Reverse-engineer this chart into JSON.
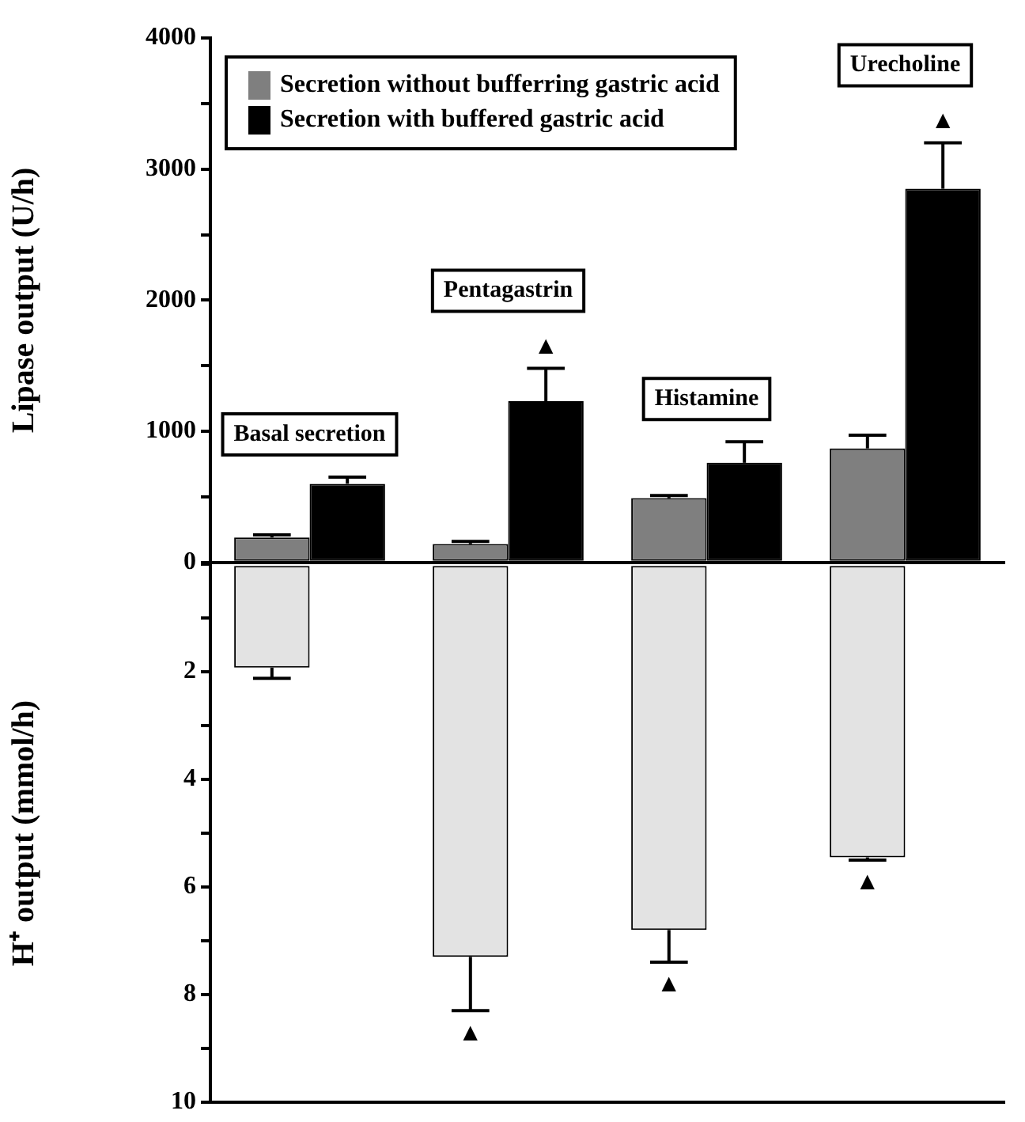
{
  "chart_data": [
    {
      "type": "bar",
      "ylabel": "Lipase output (U/h)",
      "categories": [
        "Basal secretion",
        "Pentagastrin",
        "Histamine",
        "Urecholine"
      ],
      "series": [
        {
          "name": "Secretion without bufferring gastric acid",
          "color": "#7f7f7f",
          "values": [
            190,
            140,
            490,
            870
          ],
          "errors": [
            [
              190,
              210
            ],
            [
              140,
              160
            ],
            [
              490,
              510
            ],
            [
              870,
              970
            ]
          ]
        },
        {
          "name": "Secretion with buffered gastric acid",
          "color": "#000000",
          "values": [
            600,
            1230,
            760,
            2850
          ],
          "errors": [
            [
              600,
              650
            ],
            [
              1230,
              1480
            ],
            [
              760,
              920
            ],
            [
              2850,
              3200
            ]
          ]
        }
      ],
      "ylim": [
        0,
        4000
      ],
      "yticks": [
        0,
        {
          "value": 500,
          "label": null
        },
        1000,
        {
          "value": 1500,
          "label": null
        },
        2000,
        {
          "value": 2500,
          "label": null
        },
        3000,
        {
          "value": 3500,
          "label": null
        },
        4000
      ],
      "legend": "top left",
      "annotations": [
        {
          "text": "▲",
          "y": 1480
        },
        {
          "text": "▲",
          "y": 3200
        }
      ]
    },
    {
      "type": "bar",
      "ylabel": "H⁺ output (mmol/h)",
      "categories": [
        null,
        null,
        null,
        null
      ],
      "series": [
        {
          "color": "#e3e3e3",
          "values": [
            1.92,
            7.3,
            6.8,
            5.45
          ],
          "errors": [
            [
              1.92,
              2.12
            ],
            [
              7.3,
              8.3
            ],
            [
              6.8,
              7.4
            ],
            [
              5.45,
              5.5
            ]
          ]
        },
        {
          "values": [
            null,
            null,
            null,
            null
          ]
        }
      ],
      "ylim": [
        10,
        0
      ],
      "yticks": [
        {
          "value": 0,
          "label": null
        },
        {
          "value": 1,
          "label": null
        },
        2,
        {
          "value": 3,
          "label": null
        },
        4,
        {
          "value": 5,
          "label": null
        },
        6,
        {
          "value": 7,
          "label": null
        },
        8,
        {
          "value": 9,
          "label": null
        },
        10
      ],
      "tick_labels": "y",
      "annotations": [
        {
          "text": "▲",
          "y": 8.3
        },
        {
          "text": "▲",
          "y": 7.4
        },
        {
          "text": "▲",
          "y": 5.5
        }
      ]
    }
  ]
}
